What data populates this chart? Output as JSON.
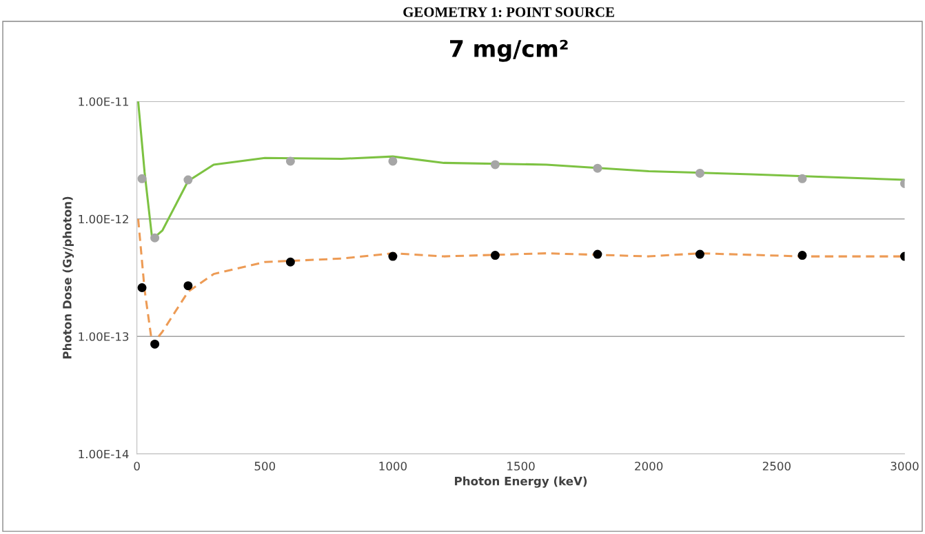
{
  "chart_data": {
    "type": "line",
    "title": "GEOMETRY 1: POINT SOURCE",
    "subtitle": "7 mg/cm²",
    "xlabel": "Photon Energy (keV)",
    "ylabel": "Photon Dose (Gy/photon)",
    "log": "y",
    "grid": "y",
    "xlim": [
      0,
      3000
    ],
    "xticks": [
      0,
      500,
      1000,
      1500,
      2000,
      2500,
      3000
    ],
    "ylim": [
      1e-14,
      1e-11
    ],
    "yticks": [
      {
        "value": 1e-14,
        "label": "1.00E-14"
      },
      {
        "value": 1e-13,
        "label": "1.00E-13"
      },
      {
        "value": 1e-12,
        "label": "1.00E-12"
      },
      {
        "value": 1e-11,
        "label": "1.00E-11"
      }
    ],
    "series": [
      {
        "color": "#7dc242",
        "line_style": "solid",
        "marker": "none",
        "x": [
          5,
          30,
          60,
          100,
          200,
          300,
          500,
          800,
          1000,
          1200,
          1600,
          2000,
          2400,
          3000
        ],
        "values": [
          1e-11,
          2.5e-12,
          6.7e-13,
          8e-13,
          2.1e-12,
          2.9e-12,
          3.3e-12,
          3.25e-12,
          3.4e-12,
          3e-12,
          2.9e-12,
          2.55e-12,
          2.4e-12,
          2.15e-12
        ]
      },
      {
        "color": "#ed9b55",
        "line_style": "dashed",
        "marker": "none",
        "x": [
          5,
          30,
          60,
          100,
          200,
          300,
          500,
          800,
          1000,
          1200,
          1600,
          2000,
          2200,
          2600,
          3000
        ],
        "values": [
          1e-12,
          2.5e-13,
          8.5e-14,
          1.1e-13,
          2.4e-13,
          3.4e-13,
          4.3e-13,
          4.6e-13,
          5.1e-13,
          4.8e-13,
          5.1e-13,
          4.8e-13,
          5.1e-13,
          4.8e-13,
          4.8e-13
        ]
      },
      {
        "type": "scatter",
        "color": "#a6a6a6",
        "marker": "circle",
        "x": [
          20,
          70,
          200,
          600,
          1000,
          1400,
          1800,
          2200,
          2600,
          3000
        ],
        "values": [
          2.2e-12,
          6.9e-13,
          2.15e-12,
          3.1e-12,
          3.1e-12,
          2.9e-12,
          2.7e-12,
          2.45e-12,
          2.2e-12,
          2e-12
        ]
      },
      {
        "type": "scatter",
        "color": "#000000",
        "marker": "circle",
        "x": [
          20,
          70,
          200,
          600,
          1000,
          1400,
          1800,
          2200,
          2600,
          3000
        ],
        "values": [
          2.6e-13,
          8.6e-14,
          2.7e-13,
          4.3e-13,
          4.8e-13,
          4.9e-13,
          5e-13,
          5e-13,
          4.9e-13,
          4.8e-13
        ]
      }
    ]
  }
}
